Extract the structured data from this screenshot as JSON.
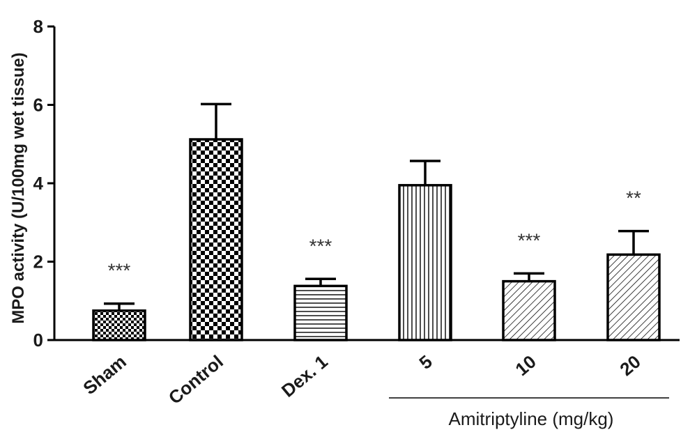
{
  "chart_data": {
    "type": "bar",
    "title": "",
    "xlabel": "",
    "ylabel": "MPO activity (U/100mg wet tissue)",
    "ylim": [
      0,
      8
    ],
    "yticks": [
      0,
      2,
      4,
      6,
      8
    ],
    "grid": false,
    "categories": [
      "Sham",
      "Control",
      "Dex. 1",
      "5",
      "10",
      "20"
    ],
    "values": [
      0.75,
      5.12,
      1.38,
      3.95,
      1.5,
      2.18
    ],
    "errors": [
      0.18,
      0.9,
      0.18,
      0.62,
      0.2,
      0.6
    ],
    "significance": [
      "***",
      "",
      "***",
      "",
      "***",
      "**"
    ],
    "patterns": [
      "small-checker",
      "large-checker",
      "horizontal-lines",
      "vertical-lines",
      "diagonal-lines",
      "diagonal-lines"
    ],
    "group_label": "Amitriptyline (mg/kg)",
    "colors": {
      "bar_stroke": "#000000",
      "fill_background": "#ffffff",
      "text": "#1a1a1a"
    }
  }
}
